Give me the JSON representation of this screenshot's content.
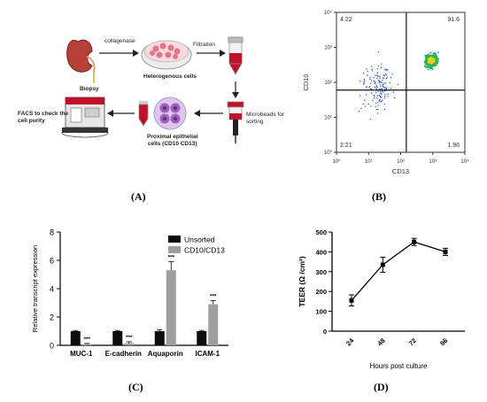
{
  "panel_a": {
    "caption": "(A)",
    "steps": {
      "biopsy": "Biopsy",
      "collagenase": "collagenase",
      "heterogenous": "Heterogenous cells",
      "filtration": "Filtration",
      "microbeads_line1": "Microbeads for",
      "microbeads_line2": "sorting",
      "proximal_line1": "Proximal epithelial",
      "proximal_line2": "cells (CD10 CD13)",
      "facs_line1": "FACS to check the",
      "facs_line2": "cell purity"
    }
  },
  "panel_b": {
    "caption": "(B)",
    "chart_data": {
      "type": "scatter",
      "xlabel": "CD13",
      "ylabel": "CD10",
      "xscale": "log",
      "yscale": "log",
      "xlim": [
        1,
        10000
      ],
      "ylim": [
        1,
        10000
      ],
      "x_ticks": [
        "10⁰",
        "10¹",
        "10²",
        "10³",
        "10⁴"
      ],
      "y_ticks": [
        "10⁰",
        "10¹",
        "10²",
        "10³",
        "10⁴"
      ],
      "gate": {
        "x": 150,
        "y": 60
      },
      "quadrants": {
        "upper_left": "4.22",
        "upper_right": "91.6",
        "lower_left": "2.21",
        "lower_right": "1.96"
      }
    }
  },
  "panel_c": {
    "caption": "(C)",
    "chart_data": {
      "type": "bar",
      "ylabel": "Relative transcript expression",
      "ylim": [
        0,
        8
      ],
      "y_ticks": [
        "0",
        "2",
        "4",
        "6",
        "8"
      ],
      "categories": [
        "MUC-1",
        "E-cadherin",
        "Aquaporin",
        "ICAM-1"
      ],
      "series": [
        {
          "name": "Unsorted",
          "values": [
            1.0,
            1.0,
            1.0,
            1.0
          ],
          "errors": [
            0.05,
            0.05,
            0.1,
            0.05
          ],
          "color": "#0d0d0d"
        },
        {
          "name": "CD10/CD13",
          "values": [
            0.08,
            0.15,
            5.3,
            2.9
          ],
          "errors": [
            0.05,
            0.1,
            0.6,
            0.25
          ],
          "color": "#9e9e9e"
        }
      ],
      "annotations": [
        "***",
        "***",
        "***",
        "***"
      ],
      "legend": "top-right"
    }
  },
  "panel_d": {
    "caption": "(D)",
    "chart_data": {
      "type": "line",
      "xlabel": "Hours post culture",
      "ylabel": "TEER (Ω /cm²)",
      "x": [
        "24",
        "48",
        "72",
        "96"
      ],
      "y": [
        155,
        335,
        450,
        400
      ],
      "errors": [
        28,
        38,
        18,
        18
      ],
      "ylim": [
        0,
        500
      ],
      "y_ticks": [
        "0",
        "100",
        "200",
        "300",
        "400",
        "500"
      ]
    }
  },
  "colors": {
    "sample_tube": "#c0102a",
    "cell_pink": "#e57390",
    "cell_purple": "#a05fbf",
    "arrow": "#222222"
  }
}
